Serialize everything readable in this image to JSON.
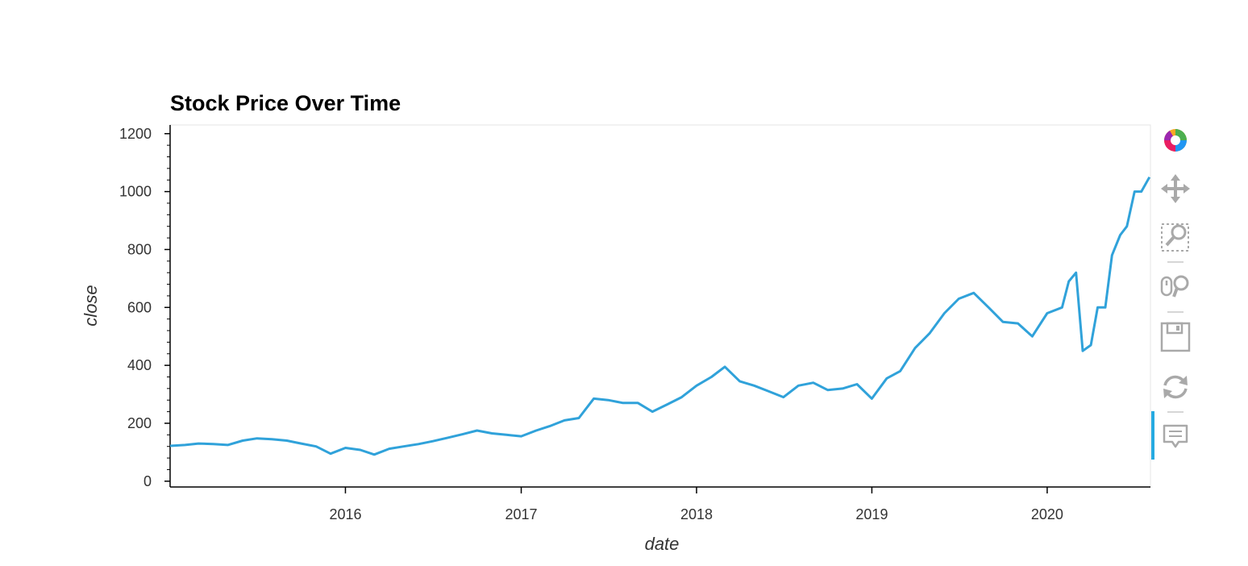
{
  "chart_data": {
    "type": "line",
    "title": "Stock Price Over Time",
    "xlabel": "date",
    "ylabel": "close",
    "xlim": [
      "2015-01-01",
      "2020-08-03"
    ],
    "ylim": [
      -20,
      1230
    ],
    "x_ticks": [
      "2016",
      "2017",
      "2018",
      "2019",
      "2020"
    ],
    "y_ticks": [
      "0",
      "200",
      "400",
      "600",
      "800",
      "1000",
      "1200"
    ],
    "grid": false,
    "series": [
      {
        "color": "#30a2da",
        "x": [
          "2015-01-01",
          "2015-02-01",
          "2015-03-01",
          "2015-04-01",
          "2015-05-01",
          "2015-06-01",
          "2015-07-01",
          "2015-08-01",
          "2015-09-01",
          "2015-10-01",
          "2015-11-01",
          "2015-12-01",
          "2016-01-01",
          "2016-02-01",
          "2016-03-01",
          "2016-04-01",
          "2016-05-01",
          "2016-06-01",
          "2016-07-01",
          "2016-08-01",
          "2016-09-01",
          "2016-10-01",
          "2016-11-01",
          "2016-12-01",
          "2017-01-01",
          "2017-02-01",
          "2017-03-01",
          "2017-04-01",
          "2017-05-01",
          "2017-06-01",
          "2017-07-01",
          "2017-08-01",
          "2017-09-01",
          "2017-10-01",
          "2017-11-01",
          "2017-12-01",
          "2018-01-01",
          "2018-02-01",
          "2018-03-01",
          "2018-04-01",
          "2018-05-01",
          "2018-06-01",
          "2018-07-01",
          "2018-08-01",
          "2018-09-01",
          "2018-10-01",
          "2018-11-01",
          "2018-12-01",
          "2019-01-01",
          "2019-02-01",
          "2019-03-01",
          "2019-04-01",
          "2019-05-01",
          "2019-06-01",
          "2019-07-01",
          "2019-08-01",
          "2019-09-01",
          "2019-10-01",
          "2019-11-01",
          "2019-12-01",
          "2020-01-01",
          "2020-02-01",
          "2020-02-15",
          "2020-03-01",
          "2020-03-15",
          "2020-04-01",
          "2020-04-15",
          "2020-05-01",
          "2020-05-15",
          "2020-06-01",
          "2020-06-15",
          "2020-07-01",
          "2020-07-15",
          "2020-08-01"
        ],
        "values": [
          122,
          125,
          130,
          128,
          125,
          140,
          148,
          145,
          140,
          130,
          120,
          95,
          115,
          108,
          92,
          112,
          120,
          128,
          138,
          150,
          162,
          175,
          165,
          160,
          155,
          175,
          190,
          210,
          218,
          285,
          280,
          270,
          270,
          240,
          265,
          290,
          330,
          360,
          395,
          345,
          330,
          310,
          290,
          330,
          340,
          315,
          320,
          335,
          285,
          355,
          380,
          460,
          510,
          580,
          630,
          650,
          600,
          550,
          545,
          500,
          580,
          600,
          690,
          720,
          450,
          470,
          600,
          600,
          780,
          850,
          880,
          1000,
          1000,
          1050
        ]
      }
    ]
  },
  "toolbar": {
    "tools": [
      {
        "name": "bokeh-logo",
        "icon": "bokeh-logo-icon"
      },
      {
        "name": "pan",
        "icon": "pan-icon"
      },
      {
        "name": "box-zoom",
        "icon": "box-zoom-icon"
      },
      {
        "name": "wheel-zoom",
        "icon": "wheel-zoom-icon"
      },
      {
        "name": "save",
        "icon": "save-icon"
      },
      {
        "name": "reset",
        "icon": "reset-icon"
      },
      {
        "name": "hover",
        "icon": "hover-icon"
      }
    ],
    "active_color": "#26aae1",
    "icon_color": "#a9a9a9"
  }
}
